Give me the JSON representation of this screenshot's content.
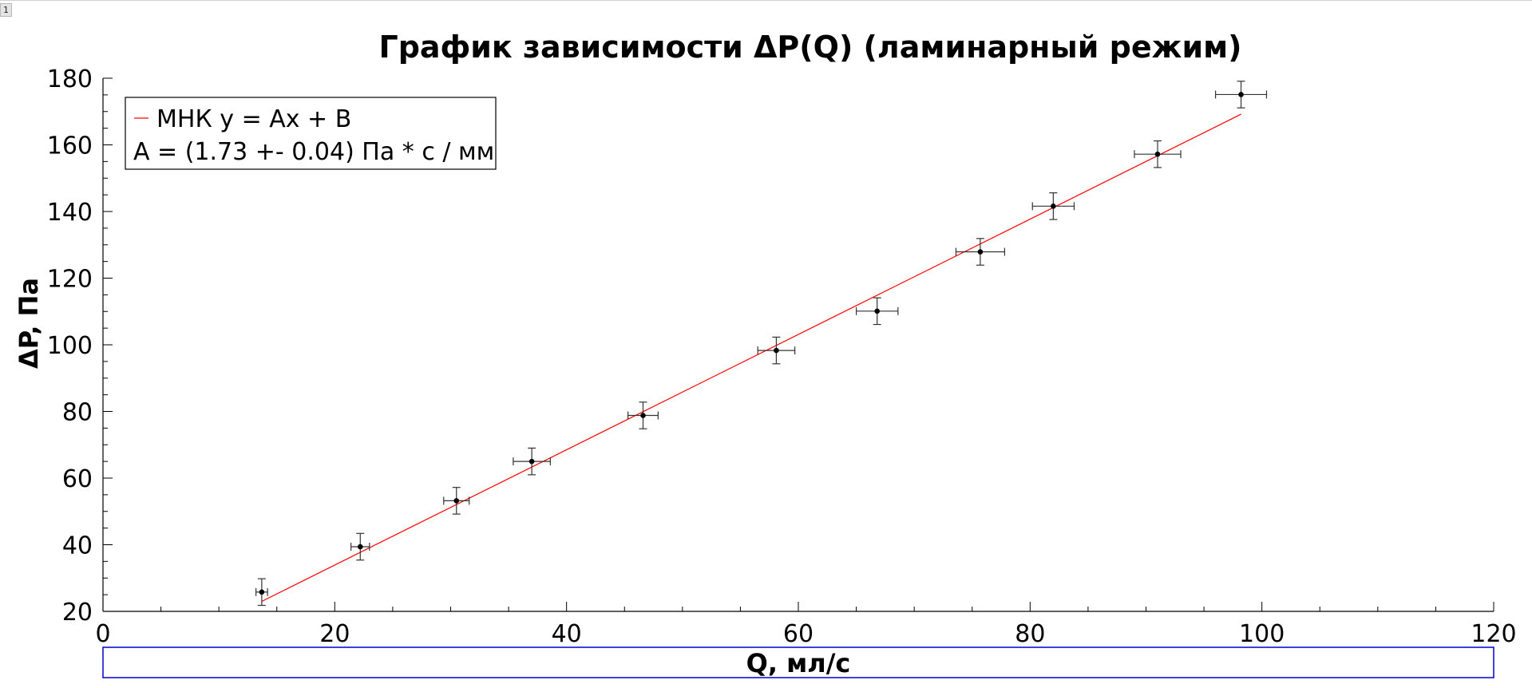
{
  "page_tab": "1",
  "chart_data": {
    "type": "scatter",
    "title": "График зависимости ΔP(Q) (ламинарный режим)",
    "xlabel": "Q, мл/с",
    "ylabel": "ΔP, Па",
    "xlim": [
      0,
      120
    ],
    "ylim": [
      20,
      180
    ],
    "xticks": [
      0,
      20,
      40,
      60,
      80,
      100,
      120
    ],
    "yticks": [
      20,
      40,
      60,
      80,
      100,
      120,
      140,
      160,
      180
    ],
    "grid": false,
    "legend_position": "top-left",
    "legend": [
      "МНК y = Ax + B",
      "A = (1.73 +- 0.04) Па * с / мм"
    ],
    "series": [
      {
        "type": "scatter",
        "color": "#000000",
        "x": [
          13.7,
          22.2,
          30.5,
          37.0,
          46.6,
          58.1,
          66.8,
          75.7,
          82.0,
          91.0,
          98.2
        ],
        "y": [
          25.8,
          39.4,
          53.2,
          65.0,
          78.8,
          98.3,
          110.1,
          127.9,
          141.6,
          157.2,
          175.1
        ],
        "xerr": [
          0.5,
          0.8,
          1.1,
          1.6,
          1.3,
          1.6,
          1.8,
          2.1,
          1.8,
          2.0,
          2.2
        ],
        "yerr": [
          4.0,
          4.0,
          4.0,
          4.0,
          4.0,
          4.0,
          4.0,
          4.0,
          4.0,
          4.0,
          4.0
        ]
      },
      {
        "type": "line",
        "color": "#ff0000",
        "x": [
          13.7,
          98.2
        ],
        "y": [
          23.0,
          169.2
        ]
      }
    ]
  }
}
